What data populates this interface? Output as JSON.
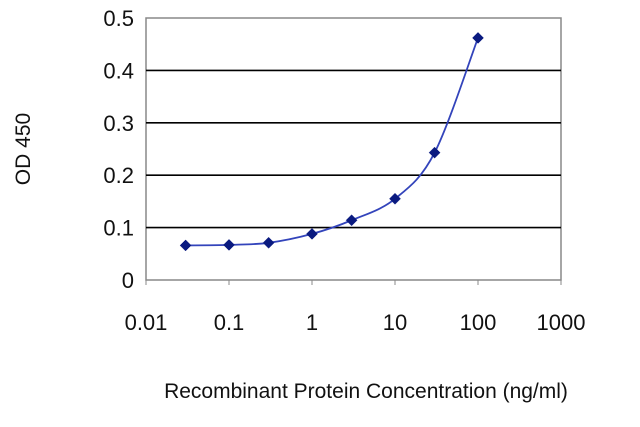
{
  "chart_data": {
    "type": "line",
    "title": "",
    "xlabel": "Recombinant Protein Concentration (ng/ml)",
    "ylabel": "OD 450",
    "x_scale": "log",
    "xlim": [
      0.01,
      1000
    ],
    "ylim": [
      0,
      0.5
    ],
    "x_ticks": [
      "0.01",
      "0.1",
      "1",
      "10",
      "100",
      "1000"
    ],
    "y_ticks": [
      "0",
      "0.1",
      "0.2",
      "0.3",
      "0.4",
      "0.5"
    ],
    "grid": "horizontal",
    "legend": "none",
    "series": [
      {
        "x": [
          0.03,
          0.1,
          0.3,
          1,
          3,
          10,
          30,
          100
        ],
        "y": [
          0.066,
          0.067,
          0.071,
          0.088,
          0.114,
          0.155,
          0.243,
          0.462
        ]
      }
    ],
    "colors": {
      "line": "#3344bb",
      "marker": "#0a1a80",
      "plot_background": "#ffffff",
      "grid": "#000000",
      "frame": "#888888"
    }
  }
}
